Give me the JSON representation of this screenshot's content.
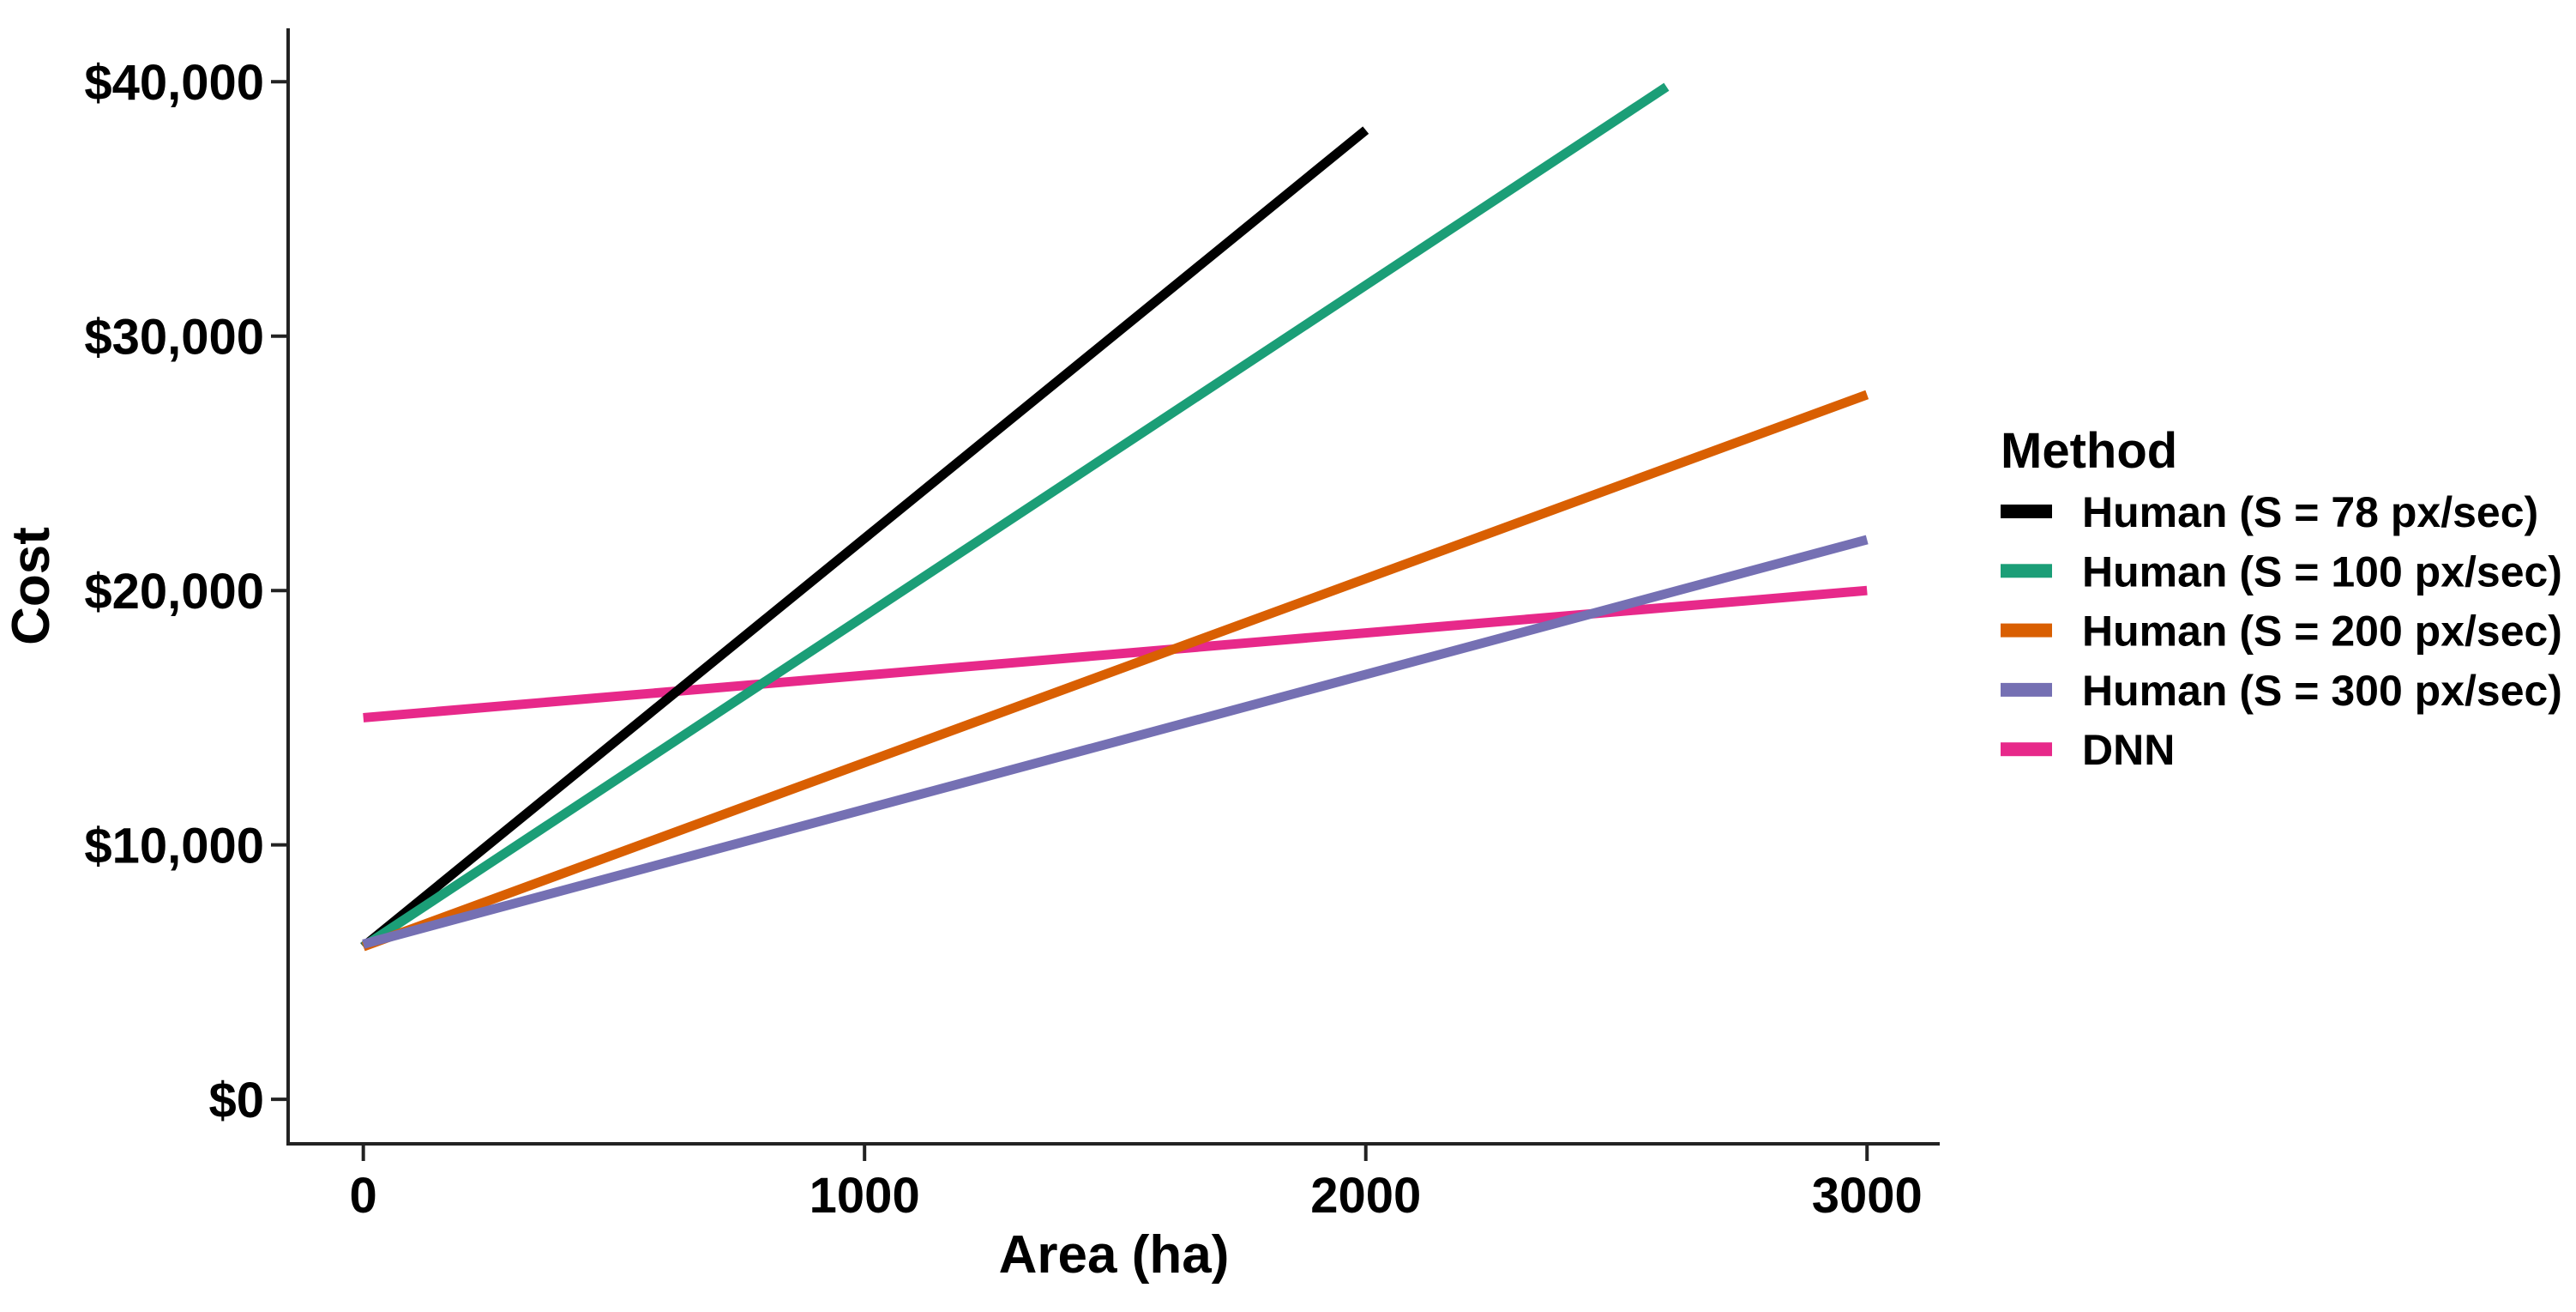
{
  "chart_data": {
    "type": "line",
    "title": "",
    "xlabel": "Area (ha)",
    "ylabel": "Cost",
    "xlim": [
      -150,
      3145
    ],
    "ylim": [
      -1750,
      42100
    ],
    "grid": false,
    "x_ticks": [
      {
        "value": 0,
        "label": "0"
      },
      {
        "value": 1000,
        "label": "1000"
      },
      {
        "value": 2000,
        "label": "2000"
      },
      {
        "value": 3000,
        "label": "3000"
      }
    ],
    "y_ticks": [
      {
        "value": 0,
        "label": "$0"
      },
      {
        "value": 10000,
        "label": "$10,000"
      },
      {
        "value": 20000,
        "label": "$20,000"
      },
      {
        "value": 30000,
        "label": "$30,000"
      },
      {
        "value": 40000,
        "label": "$40,000"
      }
    ],
    "legend": {
      "title": "Method",
      "position": "right"
    },
    "series": [
      {
        "name": "Human (S = 78 px/sec)",
        "color": "#000000",
        "points": [
          [
            0,
            6000
          ],
          [
            2000,
            38100
          ]
        ]
      },
      {
        "name": "Human (S = 100 px/sec)",
        "color": "#1B9E77",
        "points": [
          [
            0,
            6000
          ],
          [
            2600,
            39800
          ]
        ]
      },
      {
        "name": "Human (S = 200 px/sec)",
        "color": "#D95F02",
        "points": [
          [
            0,
            6000
          ],
          [
            3000,
            27700
          ]
        ]
      },
      {
        "name": "Human (S = 300 px/sec)",
        "color": "#7570B3",
        "points": [
          [
            0,
            6100
          ],
          [
            3000,
            22000
          ]
        ]
      },
      {
        "name": "DNN",
        "color": "#E7298A",
        "points": [
          [
            0,
            15000
          ],
          [
            3000,
            20000
          ]
        ]
      }
    ],
    "draw_order": [
      4,
      0,
      1,
      2,
      3
    ],
    "axis_color": "#222222"
  }
}
